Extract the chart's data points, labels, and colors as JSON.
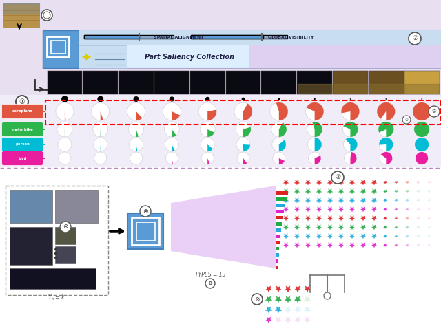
{
  "label_colors": [
    "#e05540",
    "#2db54b",
    "#00bcd4",
    "#e91e9e"
  ],
  "label_texts": [
    "aeroplane",
    "motorbike",
    "person",
    "bird"
  ],
  "pie_fractions": [
    [
      0.02,
      0.05,
      0.12,
      0.18,
      0.28,
      0.42,
      0.55,
      0.68,
      0.78,
      0.9,
      1.0
    ],
    [
      0.01,
      0.02,
      0.05,
      0.1,
      0.18,
      0.3,
      0.42,
      0.55,
      0.68,
      0.82,
      1.0
    ],
    [
      0.005,
      0.01,
      0.03,
      0.07,
      0.14,
      0.24,
      0.36,
      0.5,
      0.62,
      0.76,
      1.0
    ],
    [
      0.002,
      0.005,
      0.01,
      0.03,
      0.06,
      0.1,
      0.18,
      0.32,
      0.48,
      0.65,
      1.0
    ]
  ],
  "dot_sizes": [
    6,
    5.5,
    5,
    4.5,
    4,
    3,
    2,
    1.5,
    1,
    1,
    1
  ],
  "top_bg": "#e8e0f0",
  "grid_bg": "#f0ecf8",
  "ui_blue": "#5b9bd5",
  "dashed_line_color": "#ccaacc",
  "n_pie_cols": 11
}
